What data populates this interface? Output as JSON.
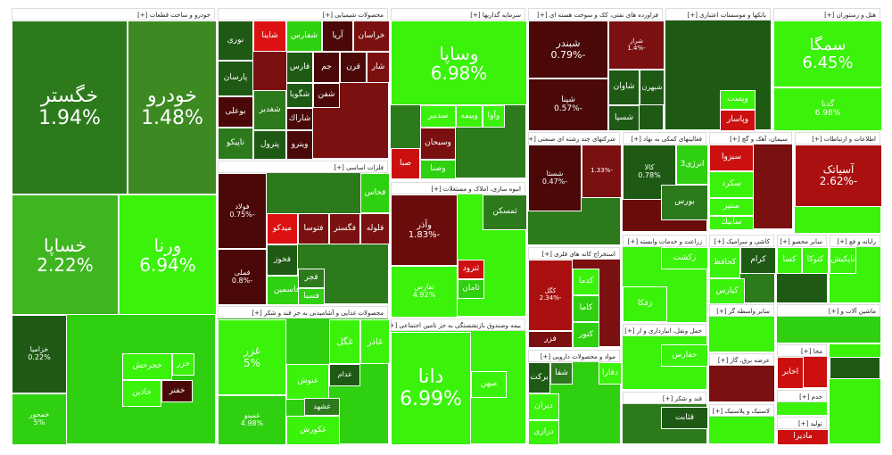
{
  "sectors": [
    {
      "title": "خودرو و ساخت قطعات [+]",
      "tiles": [
        {
          "label": "خگستر",
          "change": "1.94%"
        },
        {
          "label": "خودرو",
          "change": "1.48%"
        },
        {
          "label": "خساپا",
          "change": "2.22%"
        },
        {
          "label": "ورنا",
          "change": "6.94%"
        },
        {
          "label": "خزامیا",
          "change": "0.22%"
        },
        {
          "label": "خمحور",
          "change": "5%"
        },
        {
          "label": "خجرخش"
        },
        {
          "label": "خاذین"
        },
        {
          "label": "خفنر"
        },
        {
          "label": "خزر"
        }
      ]
    },
    {
      "title": "محصولات شیمیایی [+]",
      "tiles": [
        {
          "label": "خراسان"
        },
        {
          "label": "آریا"
        },
        {
          "label": "شفارس"
        },
        {
          "label": "شاینا"
        },
        {
          "label": "نوری"
        },
        {
          "label": "پارسان"
        },
        {
          "label": "فارس"
        },
        {
          "label": "جم"
        },
        {
          "label": "قرن"
        },
        {
          "label": "شار"
        },
        {
          "label": "بوعلی"
        },
        {
          "label": "شغدیر"
        },
        {
          "label": "شگویا"
        },
        {
          "label": "شفن"
        },
        {
          "label": "شاراك"
        },
        {
          "label": "تاپیکو"
        },
        {
          "label": "پترول"
        },
        {
          "label": "ويترو"
        }
      ]
    },
    {
      "title": "فلزات اساسی [+]",
      "tiles": [
        {
          "label": "فولاد",
          "change": "-0.75%"
        },
        {
          "label": "فملی",
          "change": "-0.8%"
        },
        {
          "label": "میدکو"
        },
        {
          "label": "فتوسا"
        },
        {
          "label": "فگستر"
        },
        {
          "label": "فلوله"
        },
        {
          "label": "فخاس"
        },
        {
          "label": "فخوز"
        },
        {
          "label": "فاسمین"
        },
        {
          "label": "فجر"
        },
        {
          "label": "فسبا"
        }
      ]
    },
    {
      "title": "محصولات غذایی و آشامیدنی به جز قند و شکر [+]",
      "tiles": [
        {
          "label": "غزر",
          "change": "5%"
        },
        {
          "label": "غمینو",
          "change": "4.98%"
        },
        {
          "label": "غگل"
        },
        {
          "label": "غاذر"
        },
        {
          "label": "غنوش"
        },
        {
          "label": "غدام"
        },
        {
          "label": "غکورش"
        },
        {
          "label": "غشهد"
        }
      ]
    },
    {
      "title": "سرمایه گذاریها [+]",
      "tiles": [
        {
          "label": "وساپا",
          "change": "6.98%"
        },
        {
          "label": "سدبیر"
        },
        {
          "label": "وبیمه"
        },
        {
          "label": "وآوا"
        },
        {
          "label": "وسبحان"
        },
        {
          "label": "صبا"
        },
        {
          "label": "وصنا"
        }
      ]
    },
    {
      "title": "انبوه سازی، املاک و مستغلات [+]",
      "tiles": [
        {
          "label": "وآذر",
          "change": "-1.83%"
        },
        {
          "label": "ثفارس",
          "change": "4.92%"
        },
        {
          "label": "ثمسکن"
        },
        {
          "label": "ثترود"
        },
        {
          "label": "ثامان"
        }
      ]
    },
    {
      "title": "بیمه وصندوق بازنشستگی به جز تامین اجتماعی [+]",
      "tiles": [
        {
          "label": "دانا",
          "change": "6.99%"
        },
        {
          "label": "میهن"
        }
      ]
    },
    {
      "title": "فراورده های نفتی، کک و سوخت هسته ای [+]",
      "tiles": [
        {
          "label": "شبندر",
          "change": "-0.79%"
        },
        {
          "label": "شپنا",
          "change": "-0.57%"
        },
        {
          "label": "شراز",
          "change": "-1.4%"
        },
        {
          "label": "شاوان"
        },
        {
          "label": "شبهرن"
        },
        {
          "label": "شسپا"
        }
      ]
    },
    {
      "title": "بانکها و موسسات اعتباری [+]",
      "tiles": [
        {
          "label": "وپست"
        },
        {
          "label": "وپاسار"
        }
      ]
    },
    {
      "title": "هتل و رستوران [+]",
      "tiles": [
        {
          "label": "سمگا",
          "change": "6.45%"
        },
        {
          "label": "گدنا",
          "change": "6.98%"
        }
      ]
    },
    {
      "title": "شرکتهای چند رشته ای صنعتی [+]",
      "tiles": [
        {
          "label": "شستا",
          "change": "-0.47%"
        },
        {
          "change": "-1.33%"
        }
      ]
    },
    {
      "title": "فعالیتهای کمکی به نهاد [+]",
      "tiles": [
        {
          "label": "کالا",
          "change": "0.78%"
        },
        {
          "label": "انرژی3"
        },
        {
          "label": "بورس"
        }
      ]
    },
    {
      "title": "سیمان، آهک و گچ [+]",
      "tiles": [
        {
          "label": "سیزوا"
        },
        {
          "label": "سکرد"
        },
        {
          "label": "ستیر"
        },
        {
          "label": "سآبیك"
        }
      ]
    },
    {
      "title": "اطلاعات و ارتباطات [+]",
      "tiles": [
        {
          "label": "آسیاتک",
          "change": "-2.62%"
        }
      ]
    },
    {
      "title": "استخراج کانه های فلزی [+]",
      "tiles": [
        {
          "label": "کگل",
          "change": "-2.34%"
        },
        {
          "label": "کدما"
        },
        {
          "label": "کاما"
        },
        {
          "label": "کنور"
        },
        {
          "label": "فزر"
        }
      ]
    },
    {
      "title": "مواد و محصولات دارویی [+]",
      "tiles": [
        {
          "label": "برکت"
        },
        {
          "label": "شفا"
        },
        {
          "label": "دفارا"
        },
        {
          "label": "دیران"
        },
        {
          "label": "درازی"
        }
      ]
    },
    {
      "title": "زراعت و خدمات وابسته [+]",
      "tiles": [
        {
          "label": "زکشت"
        },
        {
          "label": "زفکا"
        }
      ]
    },
    {
      "title": "کاشی و سرامیک [+]",
      "tiles": [
        {
          "label": "کحافظ"
        },
        {
          "label": "کرام"
        },
        {
          "label": "کپارس"
        }
      ]
    },
    {
      "title": "حمل ونقل، انبارداری و ار [+]",
      "tiles": [
        {
          "label": "حفارس"
        }
      ]
    },
    {
      "title": "قند و شکر [+]",
      "tiles": [
        {
          "label": "قثابت"
        }
      ]
    },
    {
      "title": "سایر واسطه گر [+]",
      "tiles": []
    },
    {
      "title": "عرضه برق، گاز [+]",
      "tiles": []
    },
    {
      "title": "لاستیک و پلاستیک [+]",
      "tiles": []
    },
    {
      "title": "سایر محصو [+]",
      "tiles": [
        {
          "label": "کسا"
        },
        {
          "label": "کتوکا"
        }
      ]
    },
    {
      "title": "رایانه و فع [+]",
      "tiles": [
        {
          "label": "تاپکیش"
        }
      ]
    },
    {
      "title": "ماشین آلات و [+]",
      "tiles": []
    },
    {
      "title": "مخا [+]",
      "tiles": [
        {
          "label": "اخابر"
        }
      ]
    },
    {
      "title": "حدم [+]",
      "tiles": []
    },
    {
      "title": "تولید [+]",
      "tiles": [
        {
          "label": "مادیرا"
        }
      ]
    }
  ]
}
